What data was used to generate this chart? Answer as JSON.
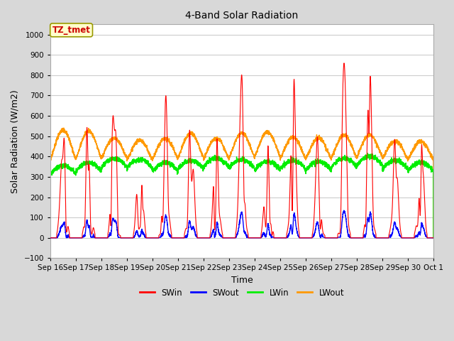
{
  "title": "4-Band Solar Radiation",
  "xlabel": "Time",
  "ylabel": "Solar Radiation (W/m2)",
  "ylim": [
    -100,
    1050
  ],
  "yticks": [
    -100,
    0,
    100,
    200,
    300,
    400,
    500,
    600,
    700,
    800,
    900,
    1000
  ],
  "fig_bg_color": "#d8d8d8",
  "plot_bg_color": "#ffffff",
  "annotation_text": "TZ_tmet",
  "annotation_bg": "#ffffcc",
  "annotation_border": "#999900",
  "annotation_text_color": "#cc0000",
  "series_colors": {
    "SWin": "#ff0000",
    "SWout": "#0000ff",
    "LWin": "#00ee00",
    "LWout": "#ff9900"
  },
  "n_days": 15,
  "start_day": 16
}
